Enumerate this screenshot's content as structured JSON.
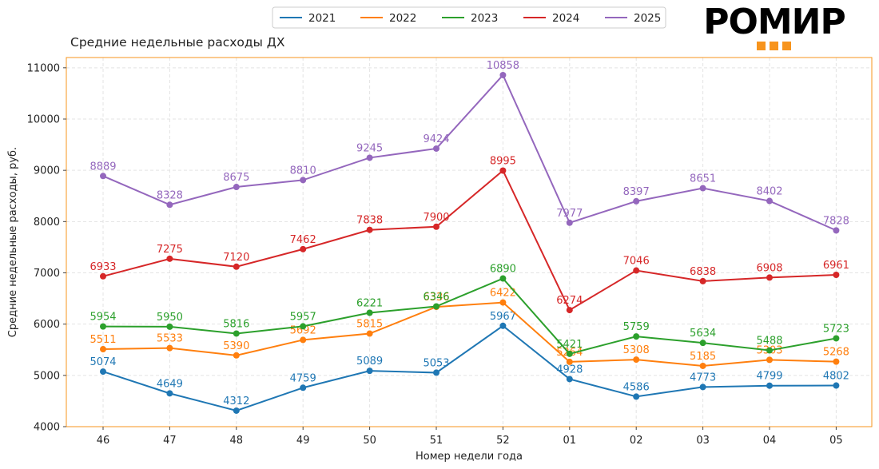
{
  "chart_data": {
    "type": "line",
    "title": "Средние недельные расходы ДХ",
    "xlabel": "Номер недели года",
    "ylabel": "Средние недельные расходы, руб.",
    "categories": [
      "46",
      "47",
      "48",
      "49",
      "50",
      "51",
      "52",
      "01",
      "02",
      "03",
      "04",
      "05"
    ],
    "ylim": [
      4000,
      11200
    ],
    "yticks": [
      "4000",
      "5000",
      "6000",
      "7000",
      "8000",
      "9000",
      "10000",
      "11000"
    ],
    "grid": true,
    "legend_position": "top-center",
    "series": [
      {
        "name": "2021",
        "color": "#1f77b4",
        "values": [
          5074,
          4649,
          4312,
          4759,
          5089,
          5053,
          5967,
          4928,
          4586,
          4773,
          4799,
          4802
        ]
      },
      {
        "name": "2022",
        "color": "#ff7f0e",
        "values": [
          5511,
          5533,
          5390,
          5692,
          5815,
          6336,
          6422,
          5264,
          5308,
          5185,
          5303,
          5268
        ]
      },
      {
        "name": "2023",
        "color": "#2ca02c",
        "values": [
          5954,
          5950,
          5816,
          5957,
          6221,
          6346,
          6890,
          5421,
          5759,
          5634,
          5488,
          5723
        ]
      },
      {
        "name": "2024",
        "color": "#d62728",
        "values": [
          6933,
          7275,
          7120,
          7462,
          7838,
          7900,
          8995,
          6274,
          7046,
          6838,
          6908,
          6961
        ]
      },
      {
        "name": "2025",
        "color": "#9467bd",
        "values": [
          8889,
          8328,
          8675,
          8810,
          9245,
          9424,
          10858,
          7977,
          8397,
          8651,
          8402,
          7828
        ]
      }
    ]
  },
  "logo": {
    "text": "РОМИР",
    "accent_color": "#f7941d",
    "text_color": "#000000"
  },
  "frame_color": "#f7941d"
}
